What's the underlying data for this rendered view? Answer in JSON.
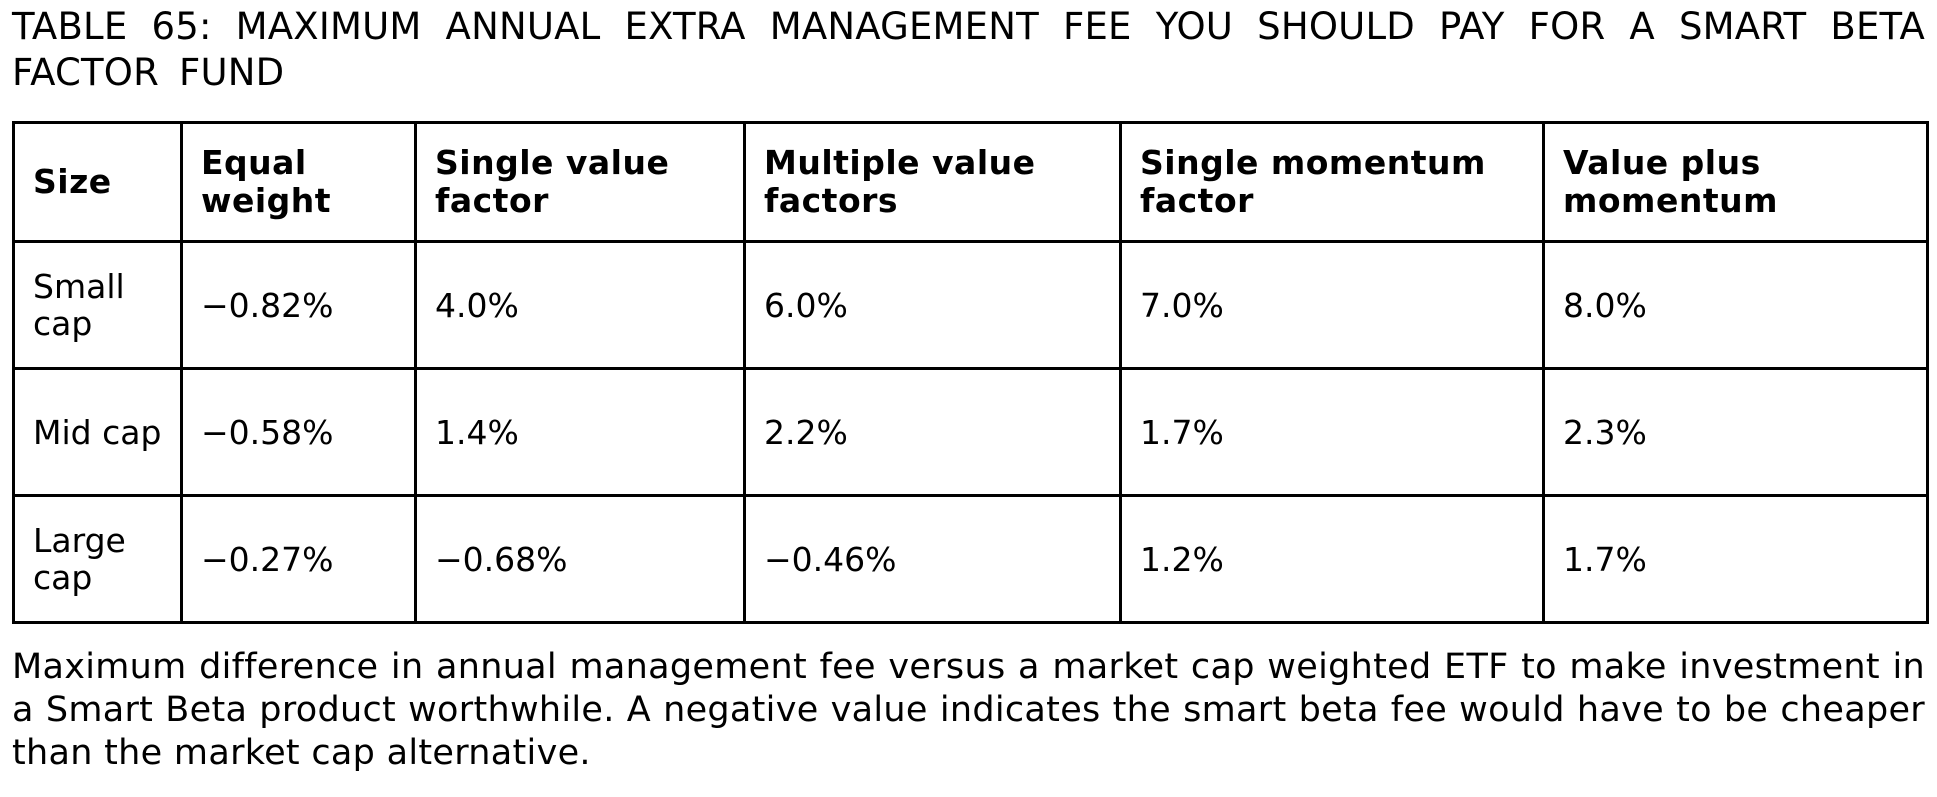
{
  "title": "TABLE 65: MAXIMUM ANNUAL EXTRA MANAGEMENT FEE YOU SHOULD PAY FOR A SMART BETA FACTOR FUND",
  "table": {
    "headers": [
      "Size",
      "Equal weight",
      "Single value factor",
      "Multiple value factors",
      "Single momentum factor",
      "Value plus momentum"
    ],
    "rows": [
      [
        "Small cap",
        "−0.82%",
        "4.0%",
        "6.0%",
        "7.0%",
        "8.0%"
      ],
      [
        "Mid cap",
        "−0.58%",
        "1.4%",
        "2.2%",
        "1.7%",
        "2.3%"
      ],
      [
        "Large cap",
        "−0.27%",
        "−0.68%",
        "−0.46%",
        "1.2%",
        "1.7%"
      ]
    ]
  },
  "caption": "Maximum difference in annual management fee versus a market cap weighted ETF to make investment in a Smart Beta product worthwhile. A negative value indicates the smart beta fee would have to be cheaper than the market cap alternative."
}
